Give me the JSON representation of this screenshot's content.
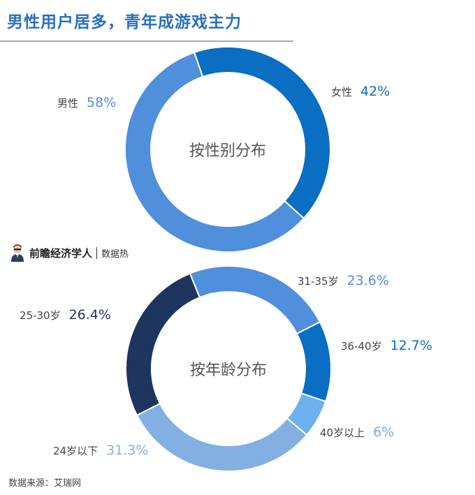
{
  "title": "男性用户居多，青年成游戏主力",
  "brand": {
    "name": "前瞻经济学人",
    "sub": "数据热"
  },
  "source": "数据来源：艾瑞网",
  "chart_data": [
    {
      "type": "pie",
      "title": "按性别分布",
      "slices": [
        {
          "label": "女性",
          "value": 42,
          "display": "42%",
          "color": "#0a6ec2"
        },
        {
          "label": "男性",
          "value": 58,
          "display": "58%",
          "color": "#4f8fdc"
        }
      ]
    },
    {
      "type": "pie",
      "title": "按年龄分布",
      "slices": [
        {
          "label": "31-35岁",
          "value": 23.6,
          "display": "23.6%",
          "color": "#4f8fdc"
        },
        {
          "label": "36-40岁",
          "value": 12.7,
          "display": "12.7%",
          "color": "#0a6ec2"
        },
        {
          "label": "40岁以上",
          "value": 6,
          "display": "6%",
          "color": "#6cb0ef"
        },
        {
          "label": "24岁以下",
          "value": 31.3,
          "display": "31.3%",
          "color": "#82b0e2"
        },
        {
          "label": "25-30岁",
          "value": 26.4,
          "display": "26.4%",
          "color": "#1e3560"
        }
      ]
    }
  ]
}
